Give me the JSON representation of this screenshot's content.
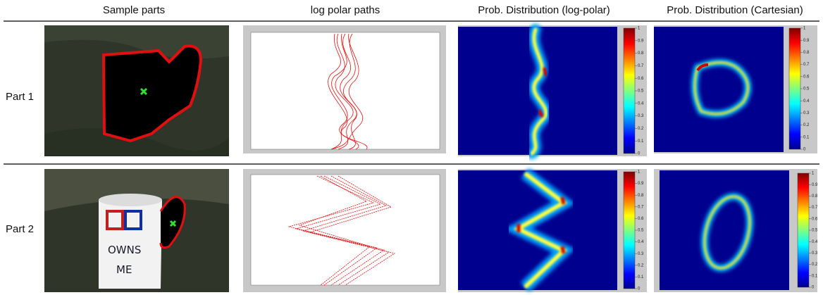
{
  "headers": [
    "Sample parts",
    "log polar paths",
    "Prob. Distribution (log-polar)",
    "Prob. Distribution (Cartesian)"
  ],
  "rows": [
    {
      "label": "Part 1"
    },
    {
      "label": "Part 2"
    }
  ],
  "mug_text": [
    "OWNS",
    "ME"
  ],
  "colorbar_ticks": [
    1,
    0.9,
    0.8,
    0.7,
    0.6,
    0.5,
    0.4,
    0.3,
    0.2,
    0.1,
    0
  ]
}
